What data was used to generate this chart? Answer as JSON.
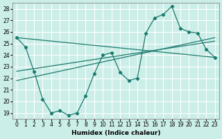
{
  "xlabel": "Humidex (Indice chaleur)",
  "bg_color": "#cceee8",
  "grid_color": "#ffffff",
  "line_color": "#1a7a6e",
  "xlim": [
    -0.5,
    23.5
  ],
  "ylim": [
    18.5,
    28.5
  ],
  "yticks": [
    19,
    20,
    21,
    22,
    23,
    24,
    25,
    26,
    27,
    28
  ],
  "xticks": [
    0,
    1,
    2,
    3,
    4,
    5,
    6,
    7,
    8,
    9,
    10,
    11,
    12,
    13,
    14,
    15,
    16,
    17,
    18,
    19,
    20,
    21,
    22,
    23
  ],
  "series1_x": [
    0,
    1,
    2,
    3,
    4,
    5,
    6,
    7,
    8,
    9,
    10,
    11,
    12,
    13,
    14,
    15,
    16,
    17,
    18,
    19,
    20,
    21,
    22,
    23
  ],
  "series1_y": [
    25.5,
    24.7,
    22.6,
    20.2,
    19.0,
    19.2,
    18.8,
    19.0,
    20.5,
    22.4,
    24.0,
    24.2,
    22.5,
    21.8,
    22.0,
    25.9,
    27.2,
    27.5,
    28.2,
    26.3,
    26.0,
    25.9,
    24.5,
    23.8
  ],
  "series2_x": [
    0,
    23
  ],
  "series2_y": [
    25.5,
    23.8
  ],
  "series3_x": [
    0,
    23
  ],
  "series3_y": [
    22.6,
    25.2
  ],
  "series4_x": [
    0,
    23
  ],
  "series4_y": [
    21.8,
    25.5
  ]
}
